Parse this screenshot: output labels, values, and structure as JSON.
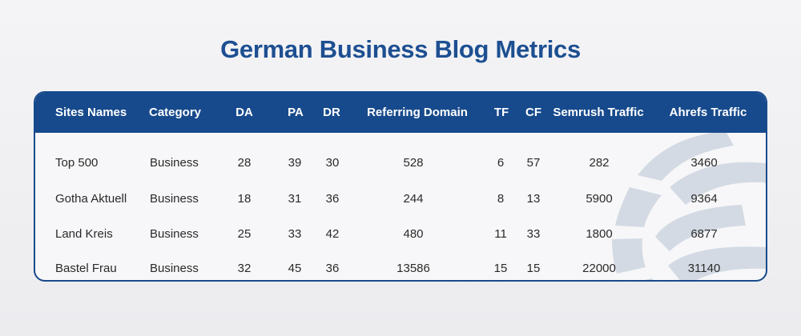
{
  "title": "German Business Blog Metrics",
  "table": {
    "headers": [
      "Sites Names",
      "Category",
      "DA",
      "PA",
      "DR",
      "Referring Domain",
      "TF",
      "CF",
      "Semrush Traffic",
      "Ahrefs Traffic"
    ],
    "rows": [
      [
        "Top 500",
        "Business",
        "28",
        "39",
        "30",
        "528",
        "6",
        "57",
        "282",
        "3460"
      ],
      [
        "Gotha Aktuell",
        "Business",
        "18",
        "31",
        "36",
        "244",
        "8",
        "13",
        "5900",
        "9364"
      ],
      [
        "Land Kreis",
        "Business",
        "25",
        "33",
        "42",
        "480",
        "11",
        "33",
        "1800",
        "6877"
      ],
      [
        "Bastel Frau",
        "Business",
        "32",
        "45",
        "36",
        "13586",
        "15",
        "15",
        "22000",
        "31140"
      ]
    ]
  },
  "colors": {
    "title": "#1d4f91",
    "header_bg": "#174a8c",
    "header_text": "#ffffff",
    "body_text": "#2a2a2a",
    "watermark": "#d3dae3"
  },
  "icons": {
    "watermark": "globe-icon"
  }
}
